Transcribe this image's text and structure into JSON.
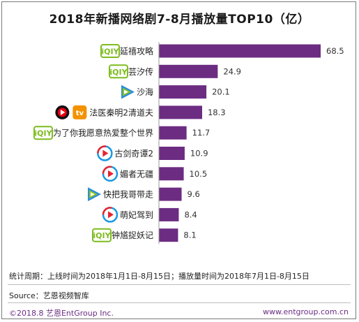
{
  "chart_data": {
    "type": "bar",
    "orientation": "horizontal",
    "title": "2018年新播网络剧7-8月播放量TOP10（亿）",
    "categories": [
      "延禧攻略",
      "芸汐传",
      "沙海",
      "法医秦明2清道夫",
      "为了你我愿意热爱整个世界",
      "古剑奇谭2",
      "媚者无疆",
      "快把我哥带走",
      "萌妃驾到",
      "钟馗捉妖记"
    ],
    "platforms": [
      [
        "iqiyi-icon"
      ],
      [
        "iqiyi-icon"
      ],
      [
        "tencent-video-icon"
      ],
      [
        "sohu-video-icon",
        "mango-tv-icon"
      ],
      [
        "iqiyi-icon"
      ],
      [
        "youku-icon"
      ],
      [
        "youku-icon"
      ],
      [
        "tencent-video-icon"
      ],
      [
        "youku-icon"
      ],
      [
        "iqiyi-icon"
      ]
    ],
    "values": [
      68.5,
      24.9,
      20.1,
      18.3,
      11.7,
      10.9,
      10.5,
      9.6,
      8.4,
      8.1
    ],
    "xlim": [
      0,
      68.5
    ],
    "bar_color": "#6c2c82",
    "label_color": "#333333",
    "grid": false
  },
  "notes": {
    "stat_period": "统计周期：上线时间为2018年1月1日-8月15日；播放量时间为2018年7月1日-8月15日",
    "source": "Source：艺恩视频智库",
    "copyright": "©2018.8  艺恩EntGroup Inc.",
    "website": "www.entgroup.com.cn"
  },
  "colors": {
    "iqiyi": "#7dbc1f",
    "tencent_blue": "#2d8fd6",
    "tencent_green": "#8dc21f",
    "tencent_orange": "#f39800",
    "youku_blue": "#1b98e0",
    "youku_red": "#e8232f",
    "mango": "#f39200",
    "sohu": "#e60012",
    "footer": "#6a2c83"
  }
}
